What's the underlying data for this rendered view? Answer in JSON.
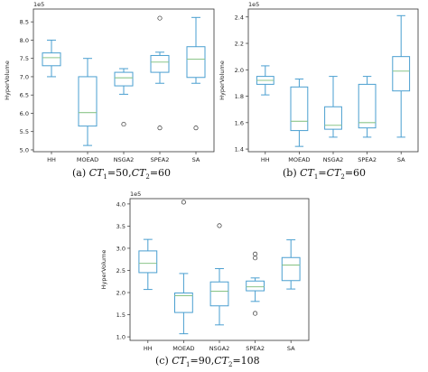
{
  "chart_data": [
    {
      "type": "box",
      "ylabel": "HyperVolume",
      "scale_label": "1e5",
      "categories": [
        "HH",
        "MOEAD",
        "NSGA2",
        "SPEA2",
        "SA"
      ],
      "yticks": [
        "5.0",
        "5.5",
        "6.0",
        "6.5",
        "7.0",
        "7.5",
        "8.0",
        "8.5"
      ],
      "ylim": [
        4.95,
        8.85
      ],
      "boxes": [
        {
          "whislo": 7.0,
          "q1": 7.3,
          "med": 7.52,
          "q3": 7.65,
          "whishi": 8.0,
          "fliers": []
        },
        {
          "whislo": 5.12,
          "q1": 5.65,
          "med": 6.02,
          "q3": 7.0,
          "whishi": 7.5,
          "fliers": []
        },
        {
          "whislo": 6.52,
          "q1": 6.75,
          "med": 6.97,
          "q3": 7.12,
          "whishi": 7.22,
          "fliers": [
            5.7
          ]
        },
        {
          "whislo": 6.82,
          "q1": 7.12,
          "med": 7.4,
          "q3": 7.58,
          "whishi": 7.67,
          "fliers": [
            8.6,
            5.6
          ]
        },
        {
          "whislo": 6.82,
          "q1": 6.98,
          "med": 7.48,
          "q3": 7.82,
          "whishi": 8.62,
          "fliers": [
            5.6
          ]
        }
      ],
      "caption": {
        "prefix": "(a) ",
        "ct1": "CT",
        "ct1_sub": "1",
        "mid": "=50,",
        "ct2": "CT",
        "ct2_sub": "2",
        "suffix": "=60"
      }
    },
    {
      "type": "box",
      "ylabel": "HyperVolume",
      "scale_label": "1e5",
      "categories": [
        "HH",
        "MOEAD",
        "NSGA2",
        "SPEA2",
        "SA"
      ],
      "yticks": [
        "1.4",
        "1.6",
        "1.8",
        "2.0",
        "2.2",
        "2.4"
      ],
      "ylim": [
        1.38,
        2.46
      ],
      "boxes": [
        {
          "whislo": 1.81,
          "q1": 1.89,
          "med": 1.92,
          "q3": 1.95,
          "whishi": 2.03,
          "fliers": []
        },
        {
          "whislo": 1.42,
          "q1": 1.54,
          "med": 1.61,
          "q3": 1.87,
          "whishi": 1.93,
          "fliers": []
        },
        {
          "whislo": 1.49,
          "q1": 1.55,
          "med": 1.58,
          "q3": 1.72,
          "whishi": 1.95,
          "fliers": []
        },
        {
          "whislo": 1.49,
          "q1": 1.56,
          "med": 1.6,
          "q3": 1.89,
          "whishi": 1.95,
          "fliers": []
        },
        {
          "whislo": 1.49,
          "q1": 1.84,
          "med": 1.99,
          "q3": 2.1,
          "whishi": 2.41,
          "fliers": []
        }
      ],
      "caption": {
        "prefix": "(b) ",
        "ct1": "CT",
        "ct1_sub": "1",
        "mid": "=",
        "ct2": "CT",
        "ct2_sub": "2",
        "suffix": "=60"
      }
    },
    {
      "type": "box",
      "ylabel": "HyperVolume",
      "scale_label": "1e5",
      "categories": [
        "HH",
        "MOEAD",
        "NSGA2",
        "SPEA2",
        "SA"
      ],
      "yticks": [
        "1.0",
        "1.5",
        "2.0",
        "2.5",
        "3.0",
        "3.5",
        "4.0"
      ],
      "ylim": [
        0.92,
        4.12
      ],
      "boxes": [
        {
          "whislo": 2.07,
          "q1": 2.45,
          "med": 2.66,
          "q3": 2.94,
          "whishi": 3.2,
          "fliers": []
        },
        {
          "whislo": 1.07,
          "q1": 1.55,
          "med": 1.93,
          "q3": 1.99,
          "whishi": 2.43,
          "fliers": [
            4.04
          ]
        },
        {
          "whislo": 1.27,
          "q1": 1.7,
          "med": 2.03,
          "q3": 2.24,
          "whishi": 2.54,
          "fliers": [
            3.51
          ]
        },
        {
          "whislo": 1.8,
          "q1": 2.04,
          "med": 2.13,
          "q3": 2.26,
          "whishi": 2.33,
          "fliers": [
            2.87,
            2.78,
            1.53
          ]
        },
        {
          "whislo": 2.08,
          "q1": 2.27,
          "med": 2.62,
          "q3": 2.79,
          "whishi": 3.19,
          "fliers": []
        }
      ],
      "caption": {
        "prefix": "(c) ",
        "ct1": "CT",
        "ct1_sub": "1",
        "mid": "=90,",
        "ct2": "CT",
        "ct2_sub": "2",
        "suffix": "=108"
      }
    }
  ],
  "colors": {
    "box": "#4a9fd0",
    "median": "#8cc58a",
    "axis": "#333333",
    "tick_text": "#222222"
  }
}
